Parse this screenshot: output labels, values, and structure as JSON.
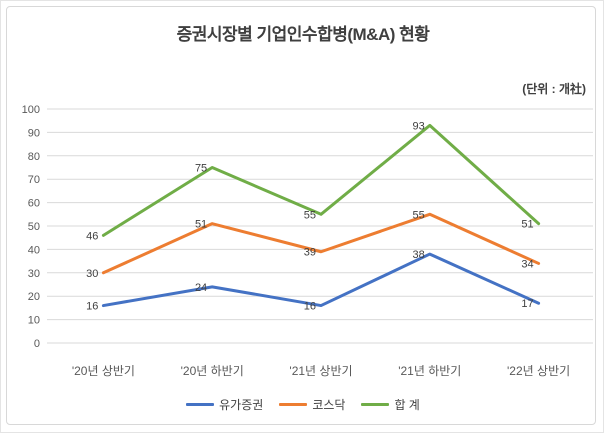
{
  "unit_note": "(단위 : 개社)",
  "chart_data": {
    "type": "line",
    "title": "증권시장별 기업인수합병(M&A) 현황",
    "categories": [
      "'20년 상반기",
      "'20년 하반기",
      "'21년 상반기",
      "'21년 하반기",
      "'22년 상반기"
    ],
    "series": [
      {
        "name": "유가증권",
        "color": "#4472C4",
        "values": [
          16,
          24,
          16,
          38,
          17
        ]
      },
      {
        "name": "코스닥",
        "color": "#ED7D31",
        "values": [
          30,
          51,
          39,
          55,
          34
        ]
      },
      {
        "name": "합 계",
        "color": "#70AD47",
        "values": [
          46,
          75,
          55,
          93,
          51
        ]
      }
    ],
    "xlabel": "",
    "ylabel": "",
    "ylim": [
      0,
      100
    ],
    "ytick_step": 10,
    "grid": true,
    "data_labels": true,
    "data_label_position": "left",
    "legend_position": "bottom"
  },
  "colors": {
    "grid": "#D9D9D9",
    "axis_text": "#595959",
    "data_label_text": "#404040",
    "title_text": "#3F3F3F",
    "frame_border": "#D8D8D8"
  }
}
